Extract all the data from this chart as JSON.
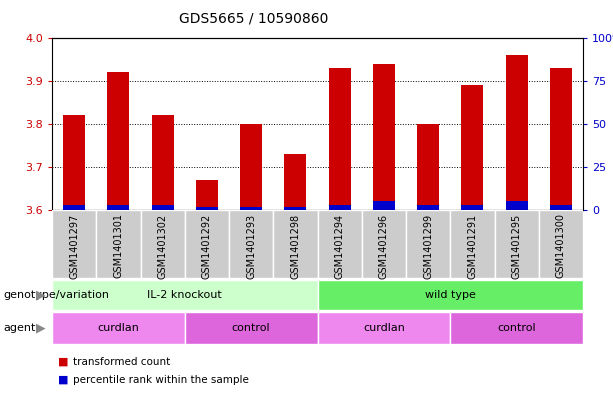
{
  "title": "GDS5665 / 10590860",
  "samples": [
    "GSM1401297",
    "GSM1401301",
    "GSM1401302",
    "GSM1401292",
    "GSM1401293",
    "GSM1401298",
    "GSM1401294",
    "GSM1401296",
    "GSM1401299",
    "GSM1401291",
    "GSM1401295",
    "GSM1401300"
  ],
  "transformed_counts": [
    3.82,
    3.92,
    3.82,
    3.67,
    3.8,
    3.73,
    3.93,
    3.94,
    3.8,
    3.89,
    3.96,
    3.93
  ],
  "percentile_ranks": [
    3,
    3,
    3,
    2,
    2,
    2,
    3,
    5,
    3,
    3,
    5,
    3
  ],
  "bar_base": 3.6,
  "ylim_left": [
    3.6,
    4.0
  ],
  "ylim_right": [
    0,
    100
  ],
  "yticks_left": [
    3.6,
    3.7,
    3.8,
    3.9,
    4.0
  ],
  "yticks_right": [
    0,
    25,
    50,
    75,
    100
  ],
  "red_color": "#cc0000",
  "blue_color": "#0000cc",
  "genotype_groups": [
    {
      "label": "IL-2 knockout",
      "start": 0,
      "end": 6,
      "color": "#ccffcc"
    },
    {
      "label": "wild type",
      "start": 6,
      "end": 12,
      "color": "#66ee66"
    }
  ],
  "agent_groups": [
    {
      "label": "curdlan",
      "start": 0,
      "end": 3,
      "color": "#ee88ee"
    },
    {
      "label": "control",
      "start": 3,
      "end": 6,
      "color": "#dd66dd"
    },
    {
      "label": "curdlan",
      "start": 6,
      "end": 9,
      "color": "#ee88ee"
    },
    {
      "label": "control",
      "start": 9,
      "end": 12,
      "color": "#dd66dd"
    }
  ],
  "legend_items": [
    {
      "label": "transformed count",
      "color": "#cc0000"
    },
    {
      "label": "percentile rank within the sample",
      "color": "#0000cc"
    }
  ],
  "bar_width": 0.5,
  "tick_color_left": "#cc0000",
  "tick_color_right": "#0000cc",
  "row1_label": "genotype/variation",
  "row2_label": "agent",
  "xticklabel_bg": "#cccccc"
}
